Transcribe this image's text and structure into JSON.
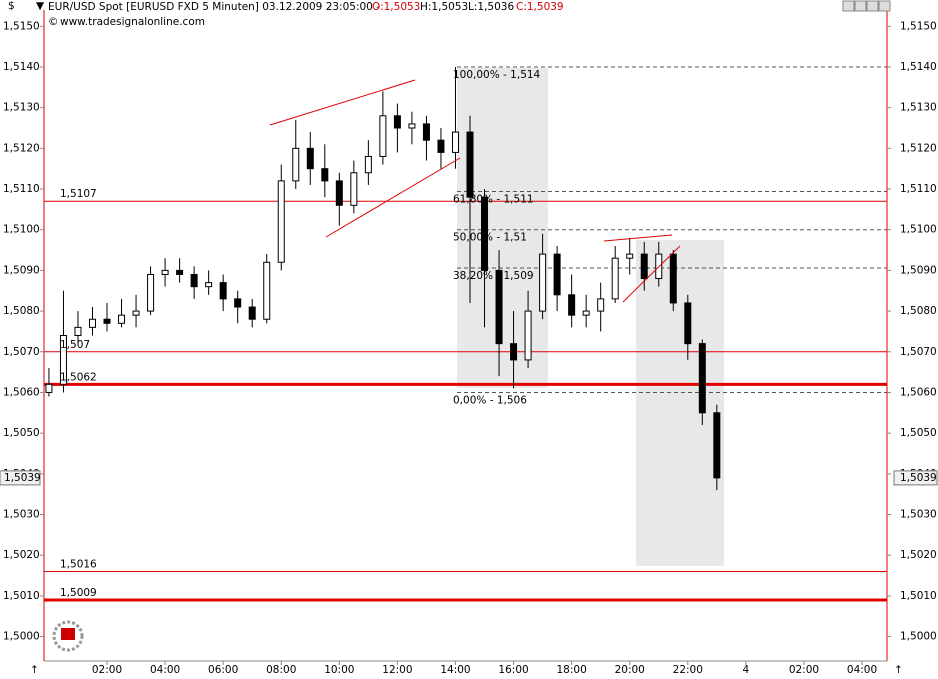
{
  "header": {
    "symbol": "EUR/USD Spot [EURUSD FXD  5 Minuten] 03.12.2009 23:05:00 -",
    "open": "O:1,5053",
    "high": "H:1,5053",
    "low": "L:1,5036",
    "close": "C:1,5039",
    "website": "www.tradesignalonline.com",
    "currency": "$"
  },
  "chart_data": {
    "type": "candlestick",
    "x": [
      0,
      0.5,
      1,
      1.5,
      2,
      2.5,
      3,
      3.5,
      4,
      4.5,
      5,
      5.5,
      6,
      6.5,
      7,
      7.5,
      8,
      8.5,
      9,
      9.5,
      10,
      10.5,
      11,
      11.5,
      12,
      12.5,
      13,
      13.5,
      14,
      14.5,
      15,
      15.5,
      16,
      16.5,
      17,
      17.5,
      18,
      18.5,
      19,
      19.5,
      20,
      20.5,
      21,
      21.5,
      22,
      22.5,
      23
    ],
    "open": [
      1.506,
      1.5062,
      1.5074,
      1.5076,
      1.5078,
      1.5077,
      1.5079,
      1.508,
      1.5089,
      1.509,
      1.5089,
      1.5086,
      1.5087,
      1.5083,
      1.5081,
      1.5078,
      1.5092,
      1.5112,
      1.512,
      1.5115,
      1.5112,
      1.5106,
      1.5114,
      1.5118,
      1.5128,
      1.5125,
      1.5126,
      1.5122,
      1.5119,
      1.5124,
      1.5108,
      1.509,
      1.5072,
      1.5068,
      1.508,
      1.5094,
      1.5084,
      1.5079,
      1.508,
      1.5083,
      1.5093,
      1.5094,
      1.5088,
      1.5094,
      1.5082,
      1.5072,
      1.5055
    ],
    "high": [
      1.5066,
      1.5085,
      1.508,
      1.5081,
      1.5082,
      1.5083,
      1.5084,
      1.5091,
      1.5093,
      1.5093,
      1.5091,
      1.509,
      1.5089,
      1.5085,
      1.5083,
      1.5094,
      1.5116,
      1.5127,
      1.5124,
      1.5121,
      1.5114,
      1.5117,
      1.5122,
      1.5134,
      1.5131,
      1.5129,
      1.5128,
      1.5125,
      1.514,
      1.5128,
      1.511,
      1.5095,
      1.508,
      1.5085,
      1.5099,
      1.5096,
      1.5089,
      1.5084,
      1.5087,
      1.5096,
      1.5098,
      1.5097,
      1.5097,
      1.5095,
      1.5084,
      1.5073,
      1.5057
    ],
    "low": [
      1.5059,
      1.506,
      1.5072,
      1.5074,
      1.5075,
      1.5076,
      1.5076,
      1.5079,
      1.5086,
      1.5087,
      1.5083,
      1.5084,
      1.508,
      1.5077,
      1.5076,
      1.5077,
      1.509,
      1.511,
      1.5111,
      1.5108,
      1.5101,
      1.5104,
      1.5111,
      1.5116,
      1.5119,
      1.5121,
      1.5117,
      1.5115,
      1.5115,
      1.5082,
      1.5076,
      1.5064,
      1.5061,
      1.5066,
      1.5078,
      1.508,
      1.5076,
      1.5076,
      1.5075,
      1.5082,
      1.5089,
      1.5085,
      1.5086,
      1.508,
      1.5068,
      1.5052,
      1.5036
    ],
    "close": [
      1.5062,
      1.5074,
      1.5076,
      1.5078,
      1.5077,
      1.5079,
      1.508,
      1.5089,
      1.509,
      1.5089,
      1.5086,
      1.5087,
      1.5083,
      1.5081,
      1.5078,
      1.5092,
      1.5112,
      1.512,
      1.5115,
      1.5112,
      1.5106,
      1.5114,
      1.5118,
      1.5128,
      1.5125,
      1.5126,
      1.5122,
      1.5119,
      1.5124,
      1.5108,
      1.509,
      1.5072,
      1.5068,
      1.508,
      1.5094,
      1.5084,
      1.5079,
      1.508,
      1.5083,
      1.5093,
      1.5094,
      1.5088,
      1.5094,
      1.5082,
      1.5072,
      1.5055,
      1.5039
    ],
    "xlim": [
      -0.17,
      28.86
    ],
    "xticks": [
      {
        "value": 2,
        "label": "02:00"
      },
      {
        "value": 4,
        "label": "04:00"
      },
      {
        "value": 6,
        "label": "06:00"
      },
      {
        "value": 8,
        "label": "08:00"
      },
      {
        "value": 10,
        "label": "10:00"
      },
      {
        "value": 12,
        "label": "12:00"
      },
      {
        "value": 14,
        "label": "14:00"
      },
      {
        "value": 16,
        "label": "16:00"
      },
      {
        "value": 18,
        "label": "18:00"
      },
      {
        "value": 20,
        "label": "20:00"
      },
      {
        "value": 22,
        "label": "22:00"
      },
      {
        "value": 24,
        "label": "4"
      },
      {
        "value": 26,
        "label": "02:00"
      },
      {
        "value": 28,
        "label": "04:00"
      }
    ],
    "ylim": [
      1.4994,
      1.5154
    ],
    "yticks": [
      {
        "value": 1.515,
        "label": "1,5150"
      },
      {
        "value": 1.514,
        "label": "1,5140"
      },
      {
        "value": 1.513,
        "label": "1,5130"
      },
      {
        "value": 1.512,
        "label": "1,5120"
      },
      {
        "value": 1.511,
        "label": "1,5110"
      },
      {
        "value": 1.51,
        "label": "1,5100"
      },
      {
        "value": 1.509,
        "label": "1,5090"
      },
      {
        "value": 1.508,
        "label": "1,5080"
      },
      {
        "value": 1.507,
        "label": "1,5070"
      },
      {
        "value": 1.506,
        "label": "1,5060"
      },
      {
        "value": 1.505,
        "label": "1,5050"
      },
      {
        "value": 1.504,
        "label": "1,5040"
      },
      {
        "value": 1.503,
        "label": "1,5030"
      },
      {
        "value": 1.502,
        "label": "1,5020"
      },
      {
        "value": 1.501,
        "label": "1,5010"
      },
      {
        "value": 1.5,
        "label": "1,5000"
      }
    ],
    "levels": [
      {
        "value": 1.5107,
        "label": "1,5107",
        "thick": false
      },
      {
        "value": 1.507,
        "label": "1,507",
        "thick": false
      },
      {
        "value": 1.5062,
        "label": "1,5062",
        "thick": true
      },
      {
        "value": 1.5016,
        "label": "1,5016",
        "thick": false
      },
      {
        "value": 1.5009,
        "label": "1,5009",
        "thick": true
      }
    ],
    "fibonacci": [
      {
        "value": 1.514,
        "label": "100,00% - 1,514"
      },
      {
        "value": 1.51094,
        "label": "61,80% - 1,511"
      },
      {
        "value": 1.51,
        "label": "50,00% - 1,51"
      },
      {
        "value": 1.50906,
        "label": "38,20% - 1,509"
      },
      {
        "value": 1.506,
        "label": "0,00% - 1,506"
      }
    ],
    "last_price": {
      "value": 1.5039,
      "label": "1,5039"
    },
    "level_color": "#e00000",
    "candle_color": "#000000"
  }
}
